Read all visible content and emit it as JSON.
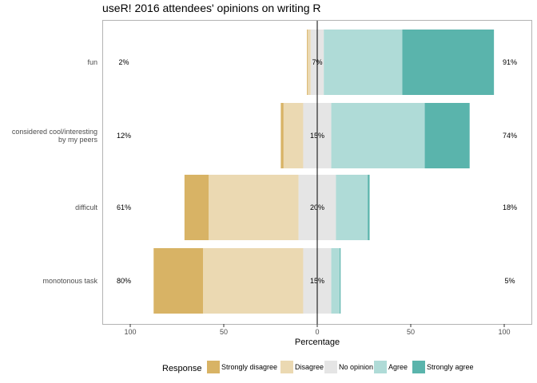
{
  "chart_data": {
    "type": "bar",
    "orientation": "horizontal-diverging",
    "title": "useR! 2016 attendees' opinions on writing R",
    "xlabel": "Percentage",
    "ylabel": "",
    "xlim": [
      -115,
      115
    ],
    "xticks": [
      -100,
      -50,
      0,
      50,
      100
    ],
    "xtick_labels": [
      "100",
      "50",
      "0",
      "50",
      "100"
    ],
    "categories": [
      "fun",
      "considered cool/interesting by my peers",
      "difficult",
      "monotonous task"
    ],
    "category_label_lines": [
      [
        "fun"
      ],
      [
        "considered cool/interesting",
        "by my peers"
      ],
      [
        "difficult"
      ],
      [
        "monotonous task"
      ]
    ],
    "series": [
      {
        "name": "Strongly disagree",
        "color": "#D8B365",
        "values": [
          0.5,
          1.5,
          13,
          26.5
        ]
      },
      {
        "name": "Disagree",
        "color": "#EBD9B2",
        "values": [
          1.5,
          10.5,
          48,
          53.5
        ]
      },
      {
        "name": "No opinion",
        "color": "#E5E5E5",
        "values": [
          7,
          15,
          20,
          15
        ]
      },
      {
        "name": "Agree",
        "color": "#AFDBD7",
        "values": [
          42,
          50,
          17,
          4.5
        ]
      },
      {
        "name": "Strongly agree",
        "color": "#5AB4AC",
        "values": [
          49,
          24,
          1,
          0.5
        ]
      }
    ],
    "left_labels": [
      "2%",
      "12%",
      "61%",
      "80%"
    ],
    "center_labels": [
      "7%",
      "15%",
      "20%",
      "15%"
    ],
    "right_labels": [
      "91%",
      "74%",
      "18%",
      "5%"
    ],
    "legend": {
      "title": "Response",
      "position": "bottom",
      "entries": [
        "Strongly disagree",
        "Disagree",
        "No opinion",
        "Agree",
        "Strongly agree"
      ]
    },
    "grid": false
  }
}
